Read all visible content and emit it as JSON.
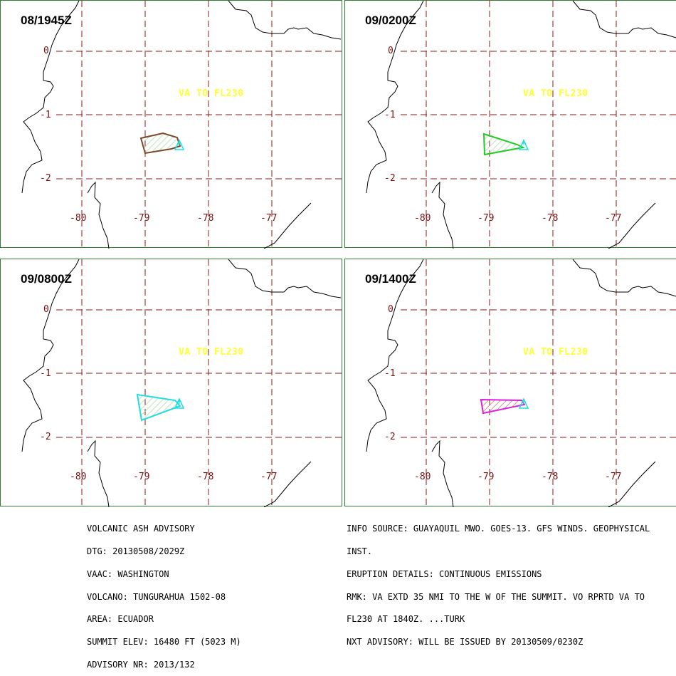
{
  "panels": [
    {
      "time": "08/1945Z",
      "ash_color": "#7b4a2d",
      "va_text": "VA TO FL230"
    },
    {
      "time": "09/0200Z",
      "ash_color": "#22cc22",
      "va_text": "VA TO FL230"
    },
    {
      "time": "09/0800Z",
      "ash_color": "#22dddd",
      "va_text": "VA TO FL230"
    },
    {
      "time": "09/1400Z",
      "ash_color": "#dd22dd",
      "va_text": "VA TO FL230"
    }
  ],
  "lat_ticks": [
    "0",
    "-1",
    "-2"
  ],
  "lon_ticks": [
    "-80",
    "-79",
    "-78",
    "-77"
  ],
  "volcano_color": "#22dddd",
  "advisory_left": [
    "VOLCANIC ASH ADVISORY",
    "DTG: 20130508/2029Z",
    "VAAC: WASHINGTON",
    "VOLCANO: TUNGURAHUA 1502-08",
    "AREA: ECUADOR",
    "SUMMIT ELEV: 16480 FT (5023 M)",
    "ADVISORY NR: 2013/132"
  ],
  "advisory_right": [
    "INFO SOURCE: GUAYAQUIL MWO. GOES-13. GFS WINDS. GEOPHYSICAL",
    "INST.",
    "ERUPTION DETAILS: CONTINUOUS EMISSIONS",
    "RMK: VA EXTD 35 NMI TO THE W OF THE SUMMIT. VO RPRTD VA TO",
    "FL230 AT 1840Z. ...TURK",
    "NXT ADVISORY: WILL BE ISSUED BY 20130509/0230Z"
  ]
}
